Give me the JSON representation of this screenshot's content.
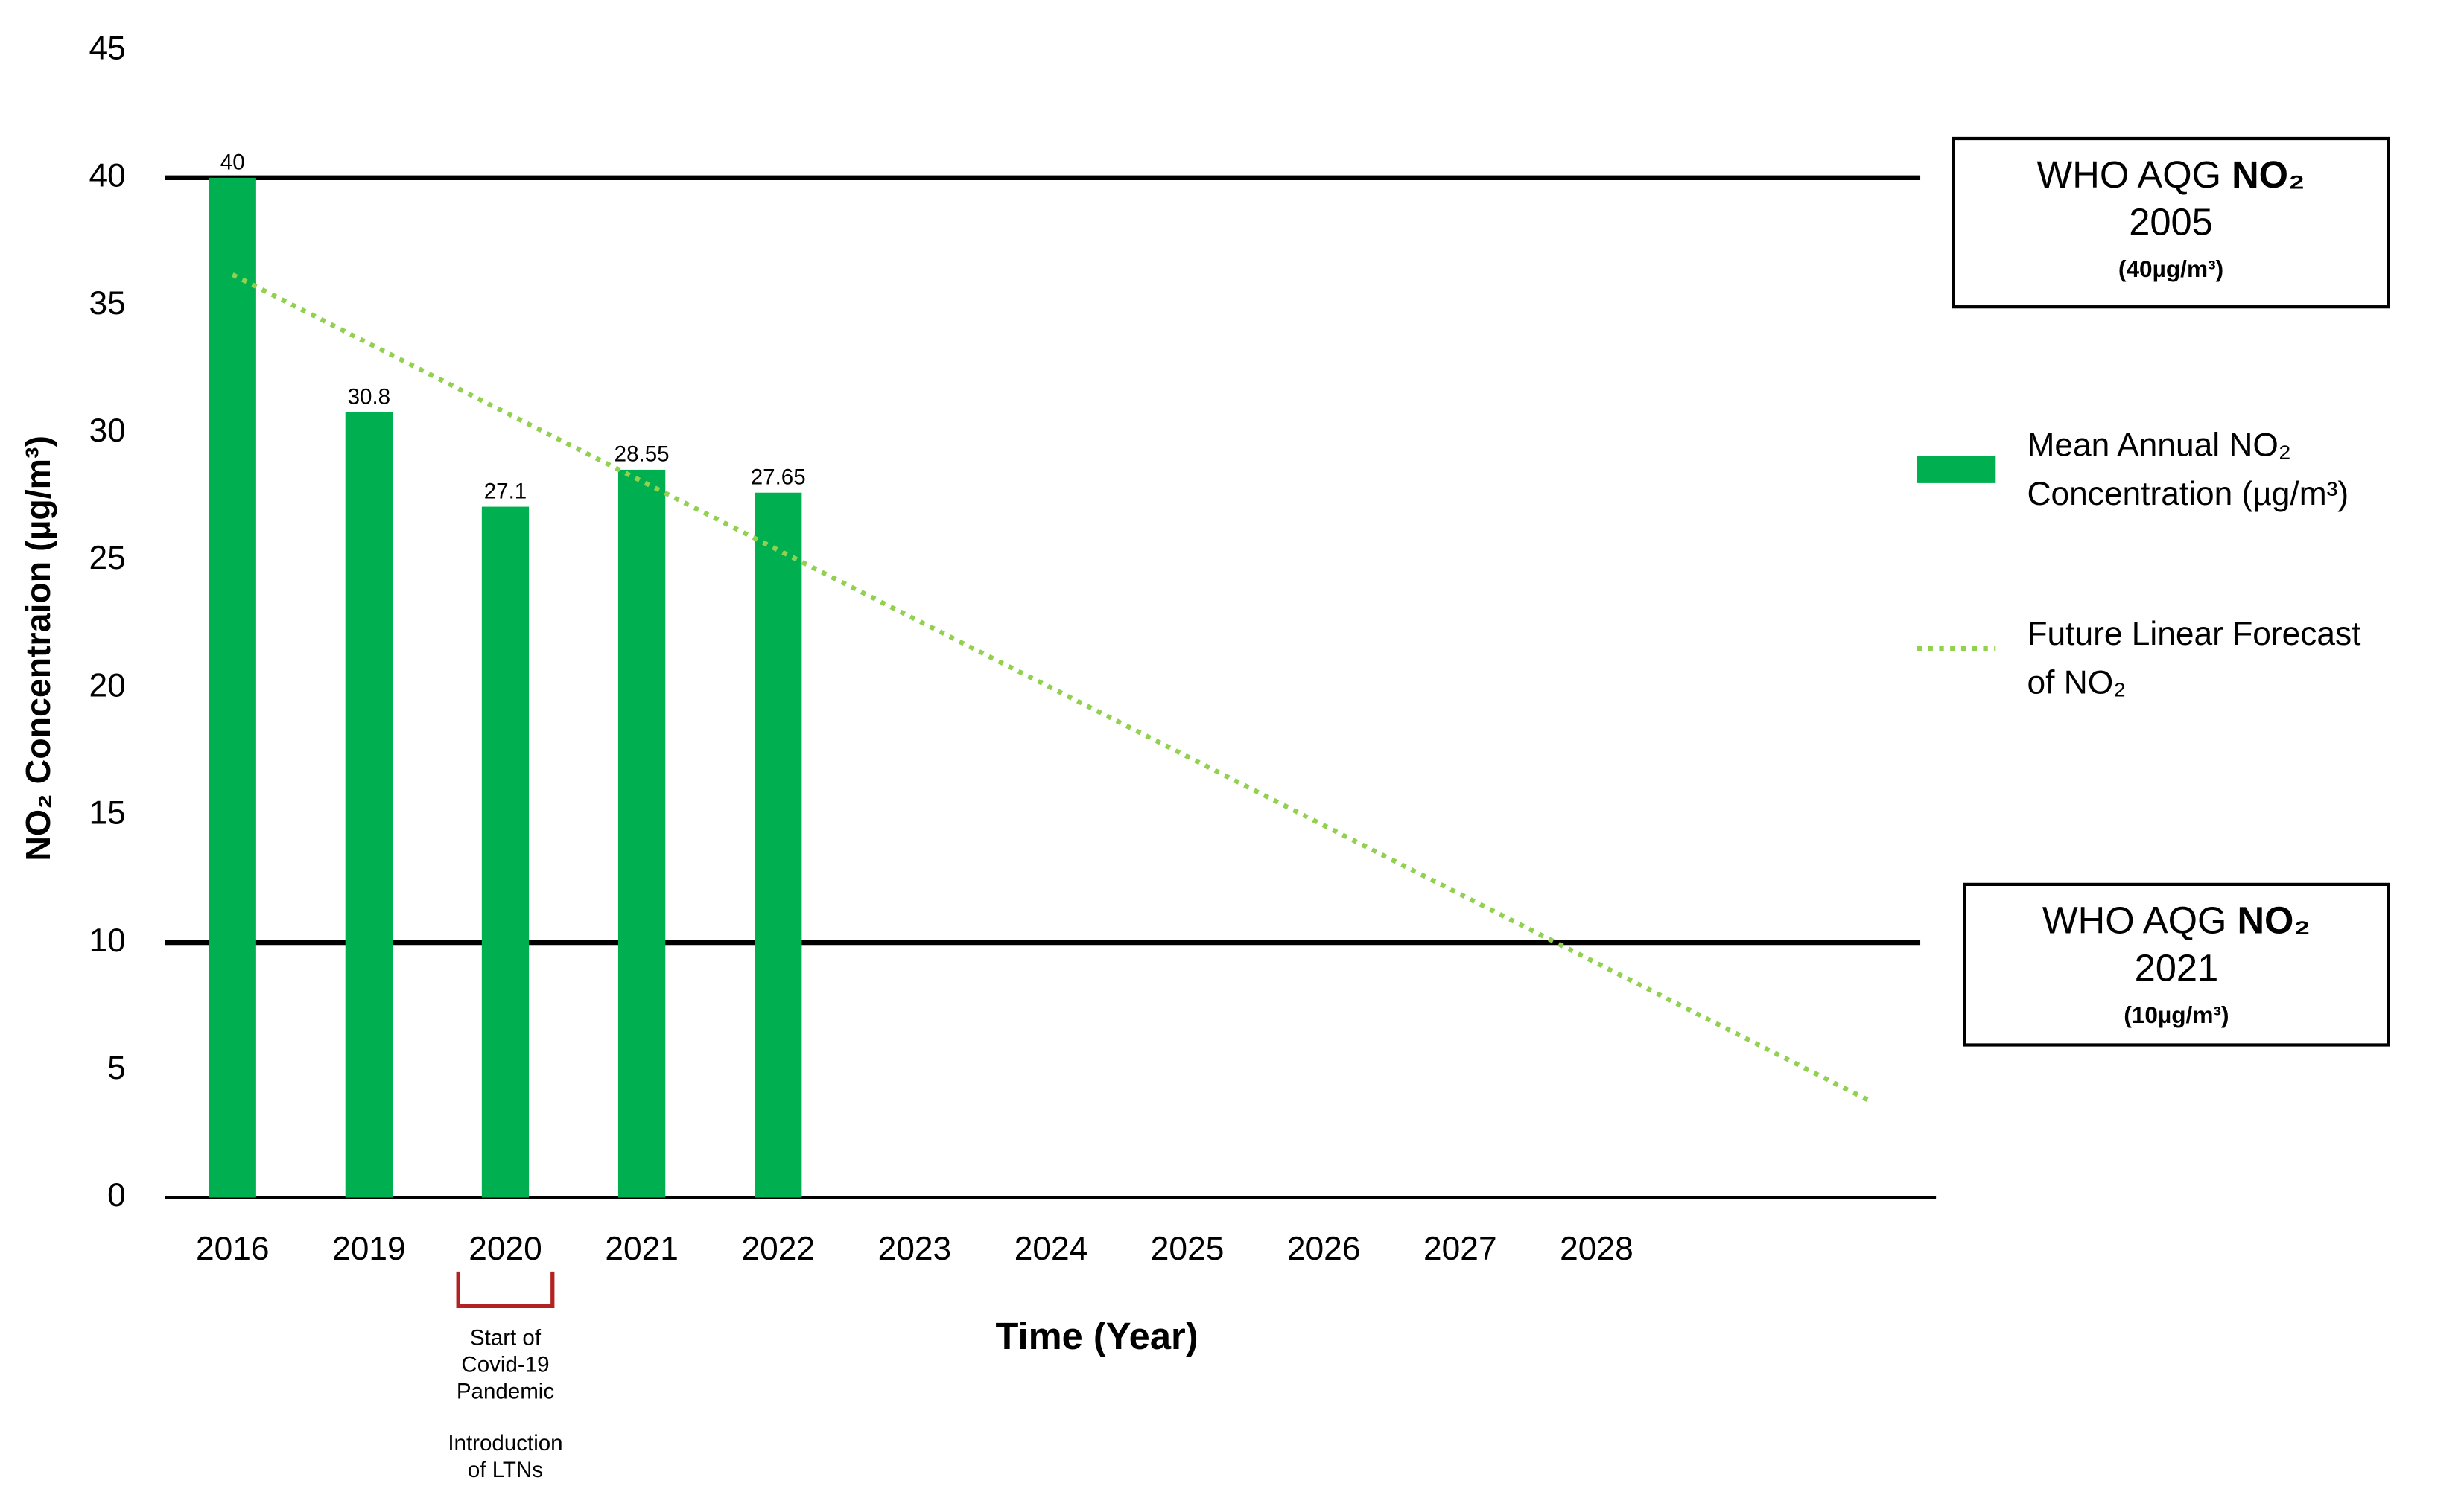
{
  "chart_data": {
    "type": "bar",
    "y_label": "NO₂ Concentraion (µg/m³)",
    "x_label": "Time (Year)",
    "categories": [
      "2016",
      "2019",
      "2020",
      "2021",
      "2022",
      "2023",
      "2024",
      "2025",
      "2026",
      "2027",
      "2028",
      null,
      null
    ],
    "ylim": [
      0,
      45
    ],
    "yticks": [
      0,
      5,
      10,
      15,
      20,
      25,
      30,
      35,
      40,
      45
    ],
    "grid": false,
    "series": [
      {
        "name": "Mean Annual NO₂ Concentration (µg/m³)",
        "type": "bar",
        "color": "#00b050",
        "values": [
          40,
          30.8,
          27.1,
          28.55,
          27.65,
          null,
          null,
          null,
          null,
          null,
          null,
          null,
          null
        ]
      },
      {
        "name": "Future Linear Forecast of NO₂",
        "type": "line",
        "style": "dotted",
        "color": "#92d050",
        "values": [
          36.2,
          33.5,
          30.8,
          28.1,
          25.4,
          22.7,
          20.0,
          17.3,
          14.6,
          11.9,
          9.2,
          6.5,
          3.8
        ]
      }
    ],
    "reference_lines": [
      {
        "value": 40,
        "title": "WHO AQG NO₂",
        "year": "2005",
        "limit": "(40µg/m³)"
      },
      {
        "value": 10,
        "title": "WHO AQG NO₂",
        "year": "2021",
        "limit": "(10µg/m³)"
      }
    ],
    "annotation": {
      "category": 2,
      "groups": [
        [
          "Start of",
          "Covid-19",
          "Pandemic"
        ],
        [
          "Introduction",
          "of LTNs"
        ]
      ]
    }
  }
}
